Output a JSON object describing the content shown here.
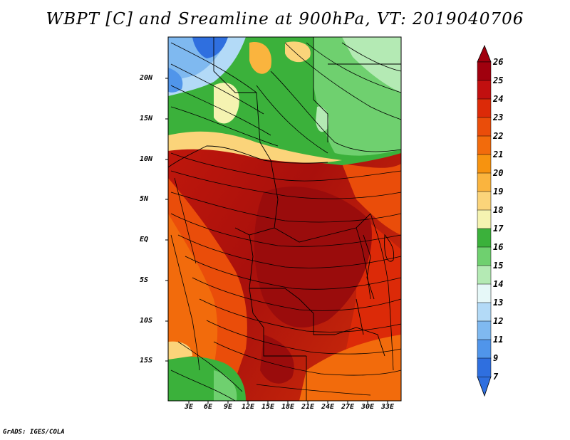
{
  "title": "WBPT [C] and Sreamline at 900hPa, VT: 2019040706",
  "footer": "GrADS: IGES/COLA",
  "map": {
    "lat_labels": [
      "20N",
      "15N",
      "10N",
      "5N",
      "EQ",
      "5S",
      "10S",
      "15S"
    ],
    "lon_labels": [
      "3E",
      "6E",
      "9E",
      "12E",
      "15E",
      "18E",
      "21E",
      "24E",
      "27E",
      "30E",
      "33E"
    ],
    "region": "Central Africa",
    "variable": "Wet-bulb potential temperature",
    "unit": "C",
    "level": "900hPa",
    "valid_time": "2019040706"
  },
  "colorbar": {
    "labels": [
      "26",
      "25",
      "24",
      "23",
      "22",
      "21",
      "20",
      "19",
      "18",
      "17",
      "16",
      "15",
      "14",
      "13",
      "12",
      "11",
      "9",
      "7"
    ],
    "colors": [
      "#a0000e",
      "#c10f0f",
      "#dc2a08",
      "#ea4d0a",
      "#f26b0c",
      "#f7930f",
      "#fab43e",
      "#fbd47a",
      "#f5f3b1",
      "#3bb13b",
      "#6fd06f",
      "#b4eab4",
      "#e6f8f8",
      "#b3daf7",
      "#7fb9f0",
      "#5095ea",
      "#2f6fdf"
    ]
  },
  "colors": {
    "frame": "#000000",
    "background": "#ffffff"
  }
}
